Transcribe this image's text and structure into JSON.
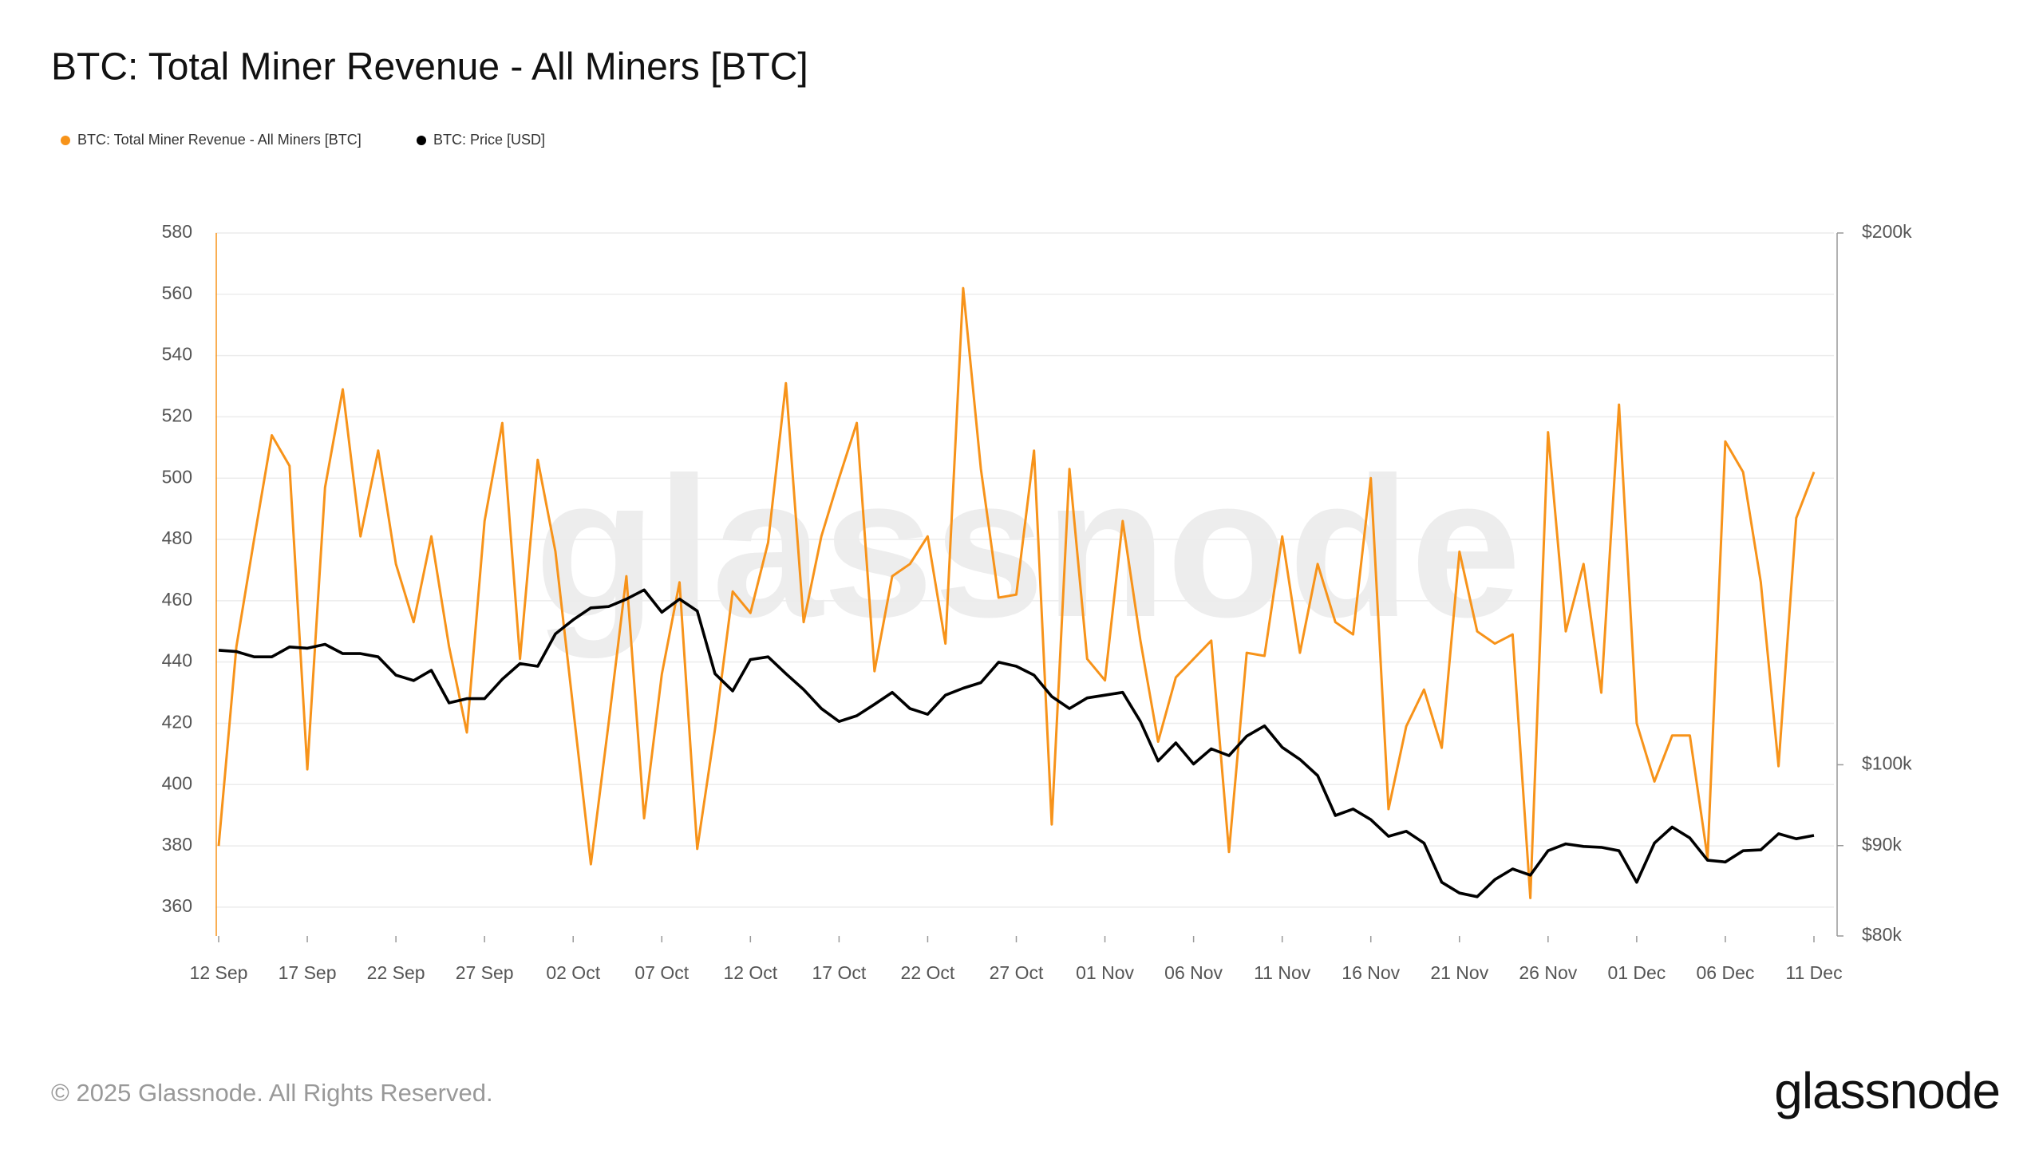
{
  "chart_data": {
    "type": "line",
    "title": "BTC: Total Miner Revenue - All Miners [BTC]",
    "legend": "top-left",
    "watermark": "glassnode",
    "categories": [
      "12 Sep",
      null,
      null,
      null,
      null,
      "17 Sep",
      null,
      null,
      null,
      null,
      "22 Sep",
      null,
      null,
      null,
      null,
      "27 Sep",
      null,
      null,
      null,
      null,
      "02 Oct",
      null,
      null,
      null,
      null,
      "07 Oct",
      null,
      null,
      null,
      null,
      "12 Oct",
      null,
      null,
      null,
      null,
      "17 Oct",
      null,
      null,
      null,
      null,
      "22 Oct",
      null,
      null,
      null,
      null,
      "27 Oct",
      null,
      null,
      null,
      null,
      "01 Nov",
      null,
      null,
      null,
      null,
      "06 Nov",
      null,
      null,
      null,
      null,
      "11 Nov",
      null,
      null,
      null,
      null,
      "16 Nov",
      null,
      null,
      null,
      null,
      "21 Nov",
      null,
      null,
      null,
      null,
      "26 Nov",
      null,
      null,
      null,
      null,
      "01 Dec",
      null,
      null,
      null,
      null,
      "06 Dec",
      null,
      null,
      null,
      null,
      "11 Dec"
    ],
    "series": [
      {
        "name": "BTC: Total Miner Revenue - All Miners [BTC]",
        "color": "#f7931a",
        "values": [
          380,
          445,
          480,
          514,
          504,
          405,
          497,
          529,
          481,
          509,
          472,
          453,
          481,
          445,
          417,
          486,
          518,
          441,
          506,
          476,
          425,
          374,
          420,
          468,
          389,
          436,
          466,
          379,
          418,
          463,
          456,
          479,
          531,
          453,
          481,
          500,
          518,
          437,
          468,
          472,
          481,
          446,
          562,
          503,
          461,
          462,
          509,
          387,
          503,
          441,
          434,
          486,
          447,
          414,
          435,
          441,
          447,
          378,
          443,
          442,
          481,
          443,
          472,
          453,
          449,
          500,
          392,
          419,
          431,
          412,
          476,
          450,
          446,
          449,
          363,
          515,
          450,
          472,
          430,
          524,
          420,
          401,
          416,
          416,
          376,
          512,
          502,
          466,
          406,
          487,
          502
        ]
      },
      {
        "name": "BTC: Price [USD]",
        "color": "#000000",
        "axis": "y2",
        "values": [
          116100,
          115900,
          115100,
          115100,
          116600,
          116400,
          117000,
          115600,
          115600,
          115100,
          112400,
          111600,
          113100,
          108400,
          109000,
          109000,
          111800,
          114100,
          113700,
          118600,
          120800,
          122700,
          122900,
          124100,
          125600,
          122000,
          124100,
          122200,
          112600,
          110100,
          114700,
          115100,
          112600,
          110300,
          107600,
          105800,
          106600,
          108200,
          109900,
          107600,
          106800,
          109500,
          110500,
          111300,
          114300,
          113700,
          112400,
          109300,
          107600,
          109100,
          109500,
          109900,
          105800,
          100500,
          102900,
          100100,
          102100,
          101200,
          103800,
          105200,
          102300,
          100700,
          98600,
          93600,
          94400,
          93100,
          91100,
          91700,
          90300,
          85800,
          84600,
          84200,
          86100,
          87300,
          86600,
          89400,
          90200,
          89900,
          89800,
          89400,
          85800,
          90300,
          92200,
          90900,
          88300,
          88100,
          89400,
          89500,
          91400,
          90800,
          91200
        ]
      }
    ],
    "ylim": [
      350.6,
      580
    ],
    "yticks": [
      360,
      380,
      400,
      420,
      440,
      460,
      480,
      500,
      520,
      540,
      560,
      580
    ],
    "y2lim": [
      80000,
      200000
    ],
    "y2scale": "log",
    "y2ticks": [
      {
        "value": 80000,
        "label": "$80k"
      },
      {
        "value": 90000,
        "label": "$90k"
      },
      {
        "value": 100000,
        "label": "$100k"
      },
      {
        "value": 200000,
        "label": "$200k"
      }
    ],
    "grid": true
  },
  "footer": {
    "copyright": "© 2025 Glassnode. All Rights Reserved.",
    "logo": "glassnode"
  }
}
